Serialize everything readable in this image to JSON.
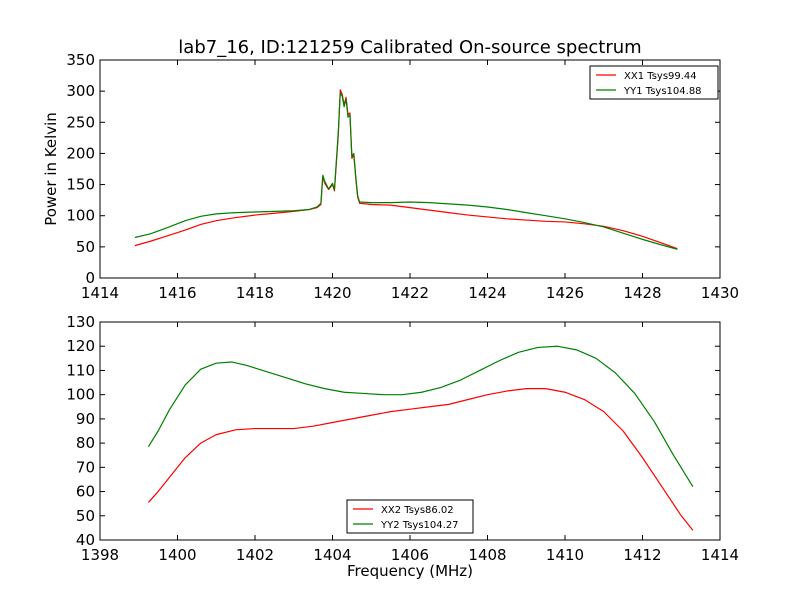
{
  "title": "lab7_16, ID:121259 Calibrated On-source spectrum",
  "chart_data": [
    {
      "type": "line",
      "ylabel": "Power in Kelvin",
      "xlabel": "",
      "xlim": [
        1414,
        1430
      ],
      "ylim": [
        0,
        350
      ],
      "xticks": [
        "1414",
        "1416",
        "1418",
        "1420",
        "1422",
        "1424",
        "1426",
        "1428",
        "1430"
      ],
      "yticks": [
        "0",
        "50",
        "100",
        "150",
        "200",
        "250",
        "300",
        "350"
      ],
      "grid": false,
      "legend_position": "top-right",
      "series": [
        {
          "name": "XX1 Tsys99.44",
          "color": "#ff0000",
          "points": [
            [
              1414.9,
              52
            ],
            [
              1415.3,
              59
            ],
            [
              1415.7,
              67
            ],
            [
              1416.2,
              77
            ],
            [
              1416.6,
              86
            ],
            [
              1417.0,
              92
            ],
            [
              1417.5,
              97
            ],
            [
              1418.0,
              101
            ],
            [
              1418.5,
              104
            ],
            [
              1419.0,
              107
            ],
            [
              1419.4,
              110
            ],
            [
              1419.6,
              113
            ],
            [
              1419.7,
              118
            ],
            [
              1419.75,
              163
            ],
            [
              1419.8,
              152
            ],
            [
              1419.9,
              142
            ],
            [
              1420.0,
              150
            ],
            [
              1420.05,
              140
            ],
            [
              1420.15,
              230
            ],
            [
              1420.2,
              302
            ],
            [
              1420.25,
              295
            ],
            [
              1420.3,
              278
            ],
            [
              1420.35,
              290
            ],
            [
              1420.4,
              262
            ],
            [
              1420.45,
              265
            ],
            [
              1420.5,
              192
            ],
            [
              1420.55,
              198
            ],
            [
              1420.6,
              160
            ],
            [
              1420.65,
              130
            ],
            [
              1420.7,
              120
            ],
            [
              1421.0,
              118
            ],
            [
              1421.5,
              117
            ],
            [
              1422.0,
              113
            ],
            [
              1422.5,
              109
            ],
            [
              1423.0,
              105
            ],
            [
              1423.5,
              101
            ],
            [
              1424.0,
              98
            ],
            [
              1424.5,
              95
            ],
            [
              1425.0,
              93
            ],
            [
              1425.5,
              91
            ],
            [
              1426.0,
              90
            ],
            [
              1426.5,
              87
            ],
            [
              1427.0,
              83
            ],
            [
              1427.5,
              76
            ],
            [
              1428.0,
              67
            ],
            [
              1428.5,
              56
            ],
            [
              1428.9,
              47
            ]
          ]
        },
        {
          "name": "YY1 Tsys104.88",
          "color": "#008000",
          "points": [
            [
              1414.9,
              65
            ],
            [
              1415.3,
              71
            ],
            [
              1415.7,
              80
            ],
            [
              1416.2,
              92
            ],
            [
              1416.6,
              99
            ],
            [
              1417.0,
              103
            ],
            [
              1417.5,
              105
            ],
            [
              1418.0,
              106
            ],
            [
              1418.5,
              107
            ],
            [
              1419.0,
              108
            ],
            [
              1419.4,
              110
            ],
            [
              1419.6,
              114
            ],
            [
              1419.7,
              120
            ],
            [
              1419.75,
              165
            ],
            [
              1419.8,
              155
            ],
            [
              1419.9,
              143
            ],
            [
              1420.0,
              152
            ],
            [
              1420.05,
              142
            ],
            [
              1420.15,
              235
            ],
            [
              1420.2,
              297
            ],
            [
              1420.25,
              292
            ],
            [
              1420.3,
              275
            ],
            [
              1420.35,
              287
            ],
            [
              1420.4,
              258
            ],
            [
              1420.45,
              262
            ],
            [
              1420.5,
              195
            ],
            [
              1420.55,
              200
            ],
            [
              1420.6,
              163
            ],
            [
              1420.65,
              132
            ],
            [
              1420.7,
              122
            ],
            [
              1421.0,
              121
            ],
            [
              1421.5,
              121
            ],
            [
              1422.0,
              122
            ],
            [
              1422.5,
              121
            ],
            [
              1423.0,
              119
            ],
            [
              1423.5,
              117
            ],
            [
              1424.0,
              114
            ],
            [
              1424.5,
              110
            ],
            [
              1425.0,
              105
            ],
            [
              1425.5,
              100
            ],
            [
              1426.0,
              95
            ],
            [
              1426.5,
              89
            ],
            [
              1427.0,
              82
            ],
            [
              1427.5,
              72
            ],
            [
              1428.0,
              62
            ],
            [
              1428.5,
              53
            ],
            [
              1428.9,
              46
            ]
          ]
        }
      ]
    },
    {
      "type": "line",
      "ylabel": "",
      "xlabel": "Frequency (MHz)",
      "xlim": [
        1398,
        1414
      ],
      "ylim": [
        40,
        130
      ],
      "xticks": [
        "1398",
        "1400",
        "1402",
        "1404",
        "1406",
        "1408",
        "1410",
        "1412",
        "1414"
      ],
      "yticks": [
        "40",
        "50",
        "60",
        "70",
        "80",
        "90",
        "100",
        "110",
        "120",
        "130"
      ],
      "grid": false,
      "legend_position": "bottom-center",
      "series": [
        {
          "name": "XX2 Tsys86.02",
          "color": "#ff0000",
          "points": [
            [
              1399.25,
              55.5
            ],
            [
              1399.5,
              60
            ],
            [
              1399.8,
              66
            ],
            [
              1400.2,
              74
            ],
            [
              1400.6,
              80
            ],
            [
              1401.0,
              83.5
            ],
            [
              1401.5,
              85.5
            ],
            [
              1402.0,
              86
            ],
            [
              1402.5,
              86
            ],
            [
              1403.0,
              86
            ],
            [
              1403.5,
              87
            ],
            [
              1404.0,
              88.5
            ],
            [
              1404.5,
              90
            ],
            [
              1405.0,
              91.5
            ],
            [
              1405.5,
              93
            ],
            [
              1406.0,
              94
            ],
            [
              1406.5,
              95
            ],
            [
              1407.0,
              96
            ],
            [
              1407.5,
              98
            ],
            [
              1408.0,
              100
            ],
            [
              1408.5,
              101.5
            ],
            [
              1409.0,
              102.5
            ],
            [
              1409.5,
              102.5
            ],
            [
              1410.0,
              101
            ],
            [
              1410.5,
              98
            ],
            [
              1411.0,
              93
            ],
            [
              1411.5,
              85
            ],
            [
              1412.0,
              74
            ],
            [
              1412.5,
              62
            ],
            [
              1413.0,
              50
            ],
            [
              1413.3,
              44
            ]
          ]
        },
        {
          "name": "YY2 Tsys104.27",
          "color": "#008000",
          "points": [
            [
              1399.25,
              78.5
            ],
            [
              1399.5,
              85
            ],
            [
              1399.8,
              94
            ],
            [
              1400.2,
              104
            ],
            [
              1400.6,
              110.5
            ],
            [
              1401.0,
              113
            ],
            [
              1401.4,
              113.5
            ],
            [
              1401.8,
              112
            ],
            [
              1402.3,
              109.5
            ],
            [
              1402.8,
              107
            ],
            [
              1403.3,
              104.5
            ],
            [
              1403.8,
              102.5
            ],
            [
              1404.3,
              101
            ],
            [
              1404.8,
              100.5
            ],
            [
              1405.3,
              100
            ],
            [
              1405.8,
              100
            ],
            [
              1406.3,
              101
            ],
            [
              1406.8,
              103
            ],
            [
              1407.3,
              106
            ],
            [
              1407.8,
              110
            ],
            [
              1408.3,
              114
            ],
            [
              1408.8,
              117.5
            ],
            [
              1409.3,
              119.5
            ],
            [
              1409.8,
              120
            ],
            [
              1410.3,
              118.5
            ],
            [
              1410.8,
              115
            ],
            [
              1411.3,
              109
            ],
            [
              1411.8,
              100.5
            ],
            [
              1412.3,
              89
            ],
            [
              1412.8,
              75
            ],
            [
              1413.3,
              62
            ]
          ]
        }
      ]
    }
  ]
}
